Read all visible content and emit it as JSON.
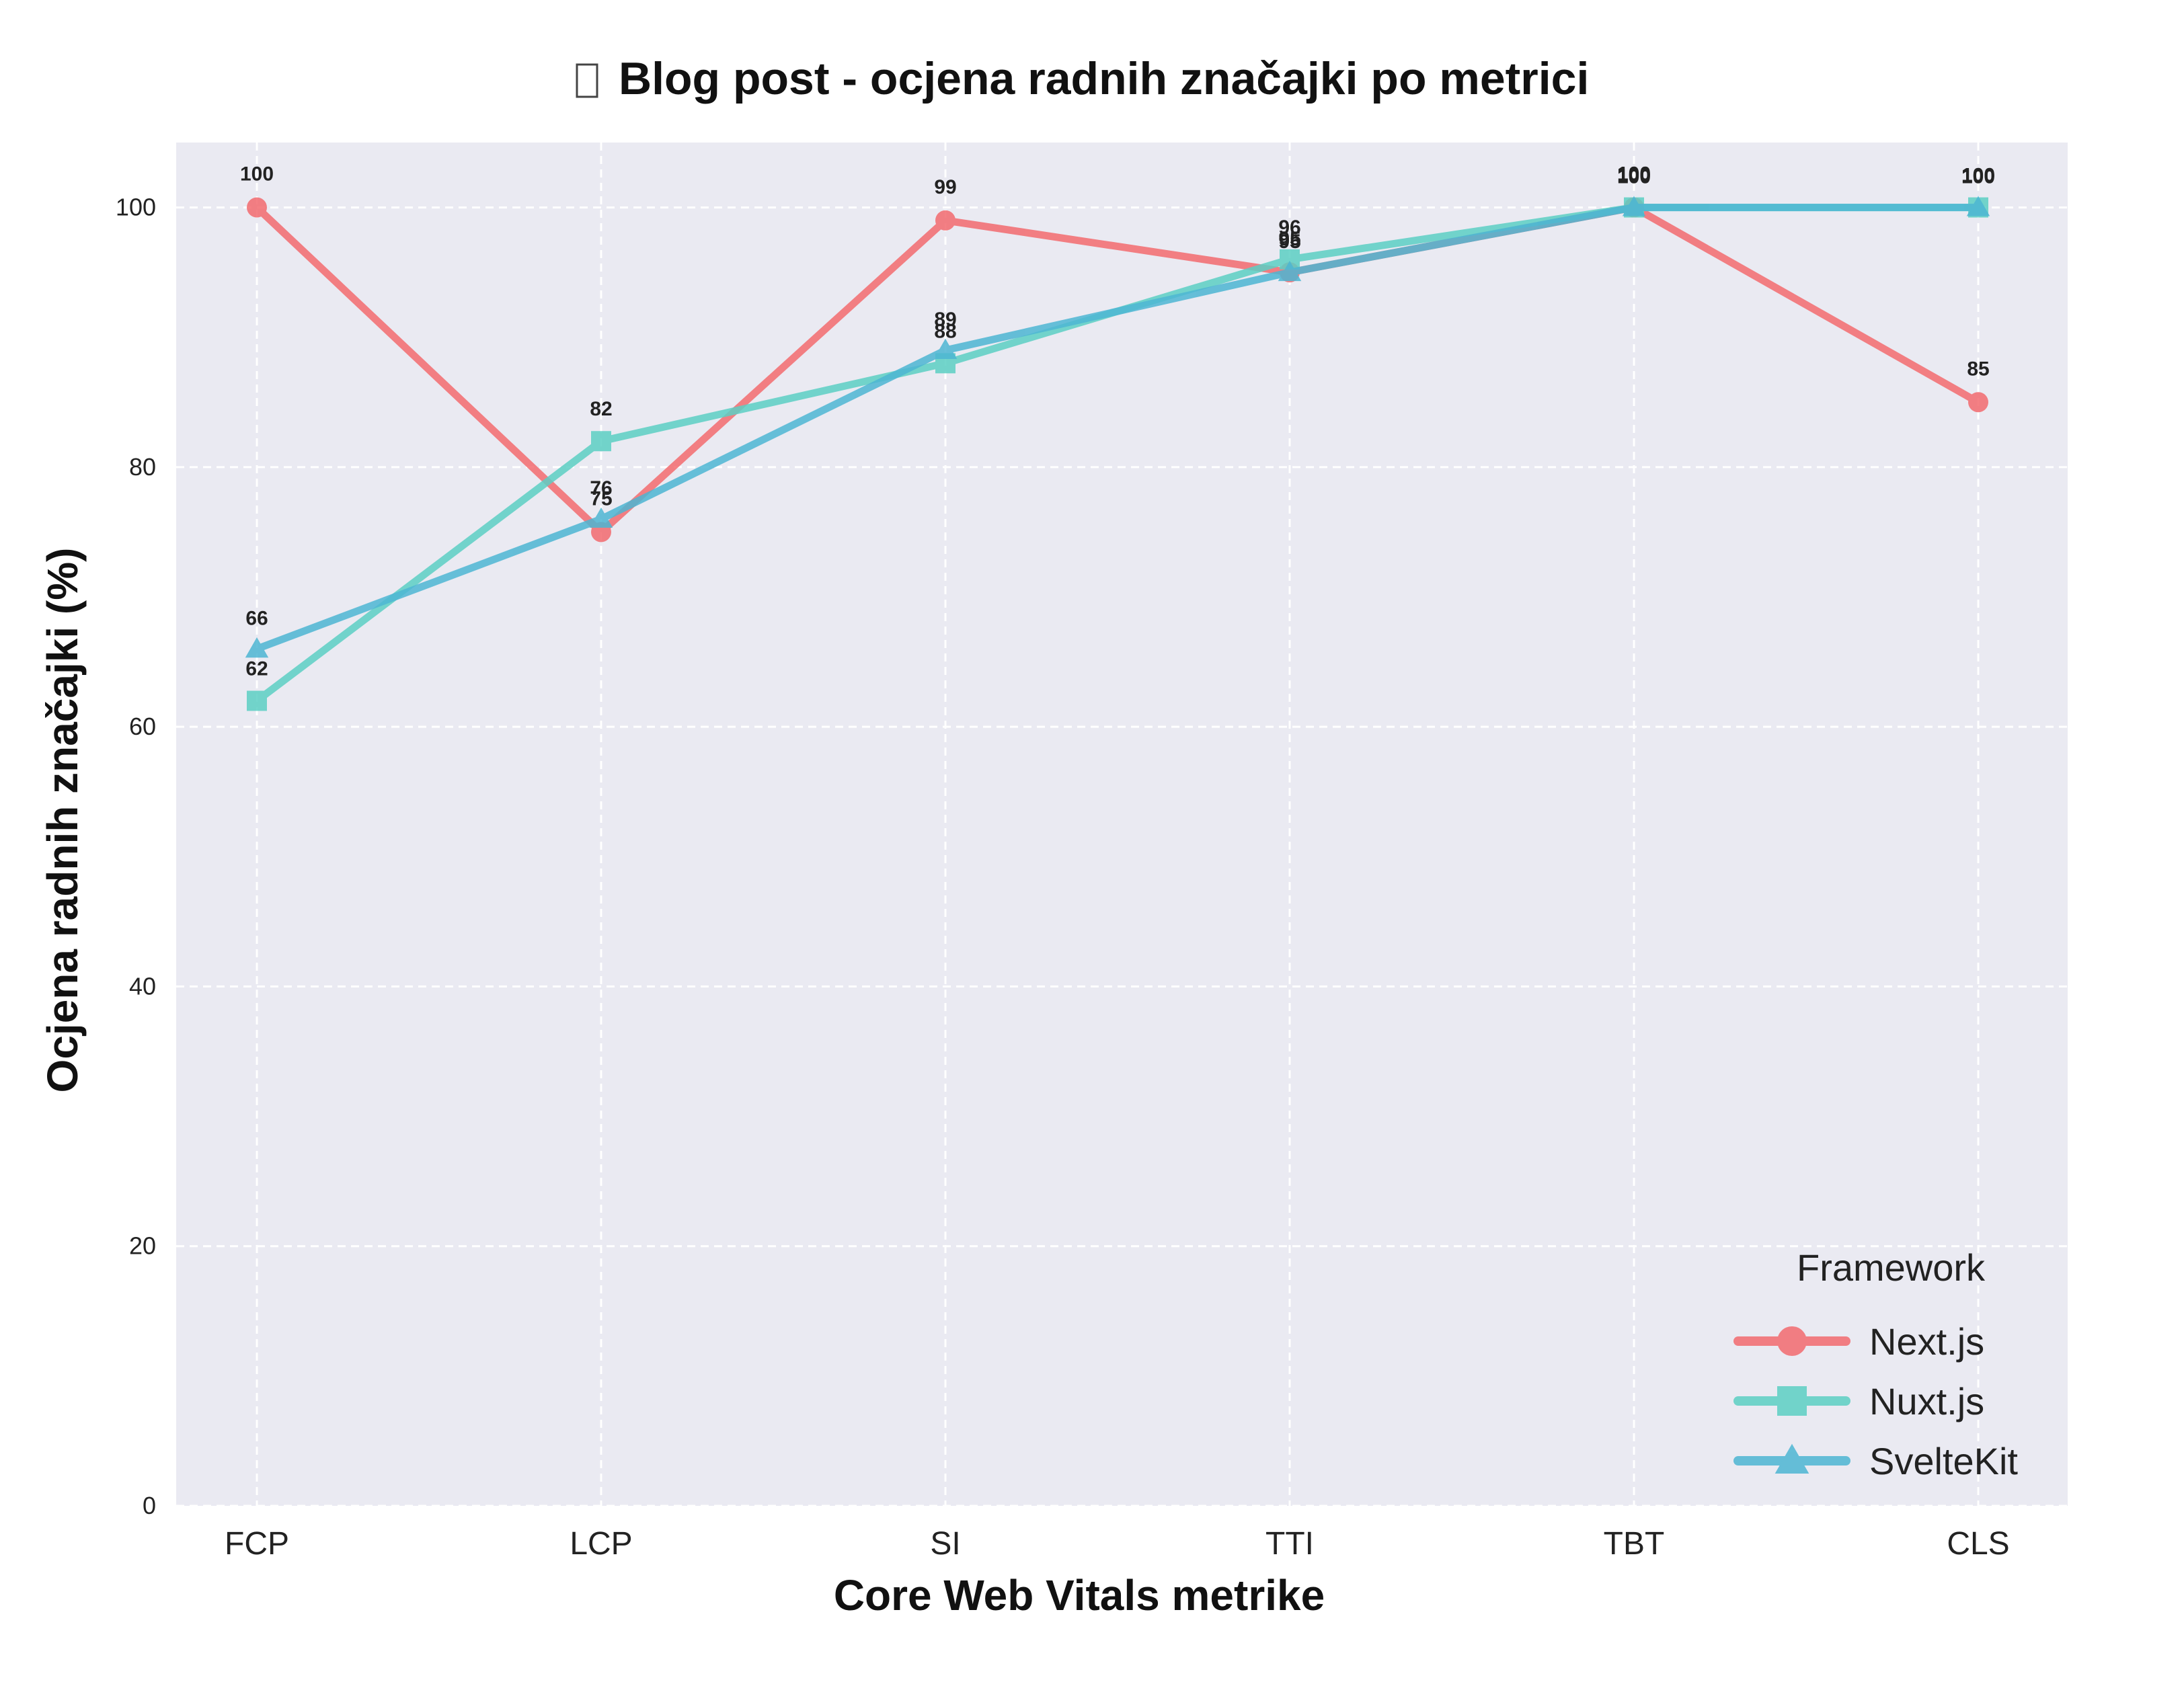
{
  "chart_data": {
    "type": "line",
    "title": "Blog post - ocjena radnih značajki po metrici",
    "title_icon": "missing-glyph-icon",
    "xlabel": "Core Web Vitals metrike",
    "ylabel": "Ocjena radnih značajki (%)",
    "categories": [
      "FCP",
      "LCP",
      "SI",
      "TTI",
      "TBT",
      "CLS"
    ],
    "ylim": [
      0,
      105
    ],
    "yticks": [
      0,
      20,
      40,
      60,
      80,
      100
    ],
    "grid": true,
    "legend": {
      "title": "Framework",
      "placement": "bottom-right"
    },
    "series": [
      {
        "name": "Next.js",
        "marker": "circle",
        "color": "#F36B6F",
        "values": [
          100,
          75,
          99,
          95,
          100,
          85
        ]
      },
      {
        "name": "Nuxt.js",
        "marker": "square",
        "color": "#5CCFC4",
        "values": [
          62,
          82,
          88,
          96,
          100,
          100
        ]
      },
      {
        "name": "SvelteKit",
        "marker": "triangle",
        "color": "#4DB6D3",
        "values": [
          66,
          76,
          89,
          95,
          100,
          100
        ]
      }
    ]
  }
}
